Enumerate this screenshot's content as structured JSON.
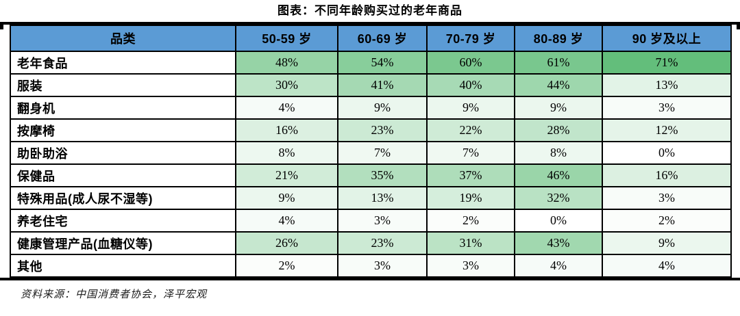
{
  "title": "图表：不同年龄购买过的老年商品",
  "source": "资料来源：中国消费者协会，泽平宏观",
  "colors": {
    "header_bg": "#5B9BD5",
    "heat_min": "#FFFFFF",
    "heat_max": "#63BE7B",
    "border": "#000000"
  },
  "chart_data": {
    "type": "heatmap",
    "title": "图表：不同年龄购买过的老年商品",
    "row_header_label": "品类",
    "columns": [
      "50-59 岁",
      "60-69 岁",
      "70-79 岁",
      "80-89 岁",
      "90 岁及以上"
    ],
    "rows": [
      {
        "label": "老年食品",
        "values": [
          48,
          54,
          60,
          61,
          71
        ]
      },
      {
        "label": "服装",
        "values": [
          30,
          41,
          40,
          44,
          13
        ]
      },
      {
        "label": "翻身机",
        "values": [
          4,
          9,
          9,
          9,
          3
        ]
      },
      {
        "label": "按摩椅",
        "values": [
          16,
          23,
          22,
          28,
          12
        ]
      },
      {
        "label": "助卧助浴",
        "values": [
          8,
          7,
          7,
          8,
          0
        ]
      },
      {
        "label": "保健品",
        "values": [
          21,
          35,
          37,
          46,
          16
        ]
      },
      {
        "label": "特殊用品(成人尿不湿等)",
        "values": [
          9,
          13,
          19,
          32,
          3
        ]
      },
      {
        "label": "养老住宅",
        "values": [
          4,
          3,
          2,
          0,
          2
        ]
      },
      {
        "label": "健康管理产品(血糖仪等)",
        "values": [
          26,
          23,
          31,
          43,
          9
        ]
      },
      {
        "label": "其他",
        "values": [
          2,
          3,
          3,
          4,
          4
        ]
      }
    ],
    "value_format": "percent",
    "value_scale": {
      "min": 0,
      "max": 71
    },
    "legend_position": "none",
    "grid": true
  }
}
